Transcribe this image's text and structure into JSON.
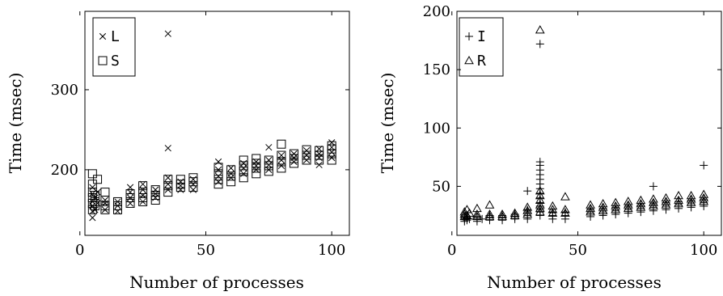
{
  "chart_data": [
    {
      "type": "scatter",
      "xlabel": "Number of processes",
      "ylabel": "Time (msec)",
      "xlim": [
        2,
        107
      ],
      "ylim": [
        118,
        398
      ],
      "xticks": [
        0,
        50,
        100
      ],
      "yticks": [
        200,
        300
      ],
      "legend_position": "top-left",
      "series": [
        {
          "name": "L",
          "marker": "cross",
          "points": [
            [
              5,
              140
            ],
            [
              5,
              148
            ],
            [
              5,
              155
            ],
            [
              5,
              160
            ],
            [
              5,
              170
            ],
            [
              5,
              178
            ],
            [
              6,
              150
            ],
            [
              6,
              165
            ],
            [
              7,
              158
            ],
            [
              7,
              172
            ],
            [
              10,
              150
            ],
            [
              10,
              158
            ],
            [
              10,
              162
            ],
            [
              15,
              148
            ],
            [
              15,
              155
            ],
            [
              15,
              160
            ],
            [
              20,
              158
            ],
            [
              20,
              165
            ],
            [
              20,
              172
            ],
            [
              20,
              178
            ],
            [
              25,
              160
            ],
            [
              25,
              168
            ],
            [
              25,
              175
            ],
            [
              25,
              182
            ],
            [
              30,
              165
            ],
            [
              30,
              170
            ],
            [
              30,
              175
            ],
            [
              35,
              175
            ],
            [
              35,
              182
            ],
            [
              35,
              190
            ],
            [
              35,
              227
            ],
            [
              35,
              370
            ],
            [
              40,
              175
            ],
            [
              40,
              180
            ],
            [
              40,
              185
            ],
            [
              45,
              175
            ],
            [
              45,
              182
            ],
            [
              45,
              188
            ],
            [
              55,
              185
            ],
            [
              55,
              192
            ],
            [
              55,
              200
            ],
            [
              55,
              210
            ],
            [
              60,
              190
            ],
            [
              60,
              195
            ],
            [
              60,
              202
            ],
            [
              65,
              195
            ],
            [
              65,
              202
            ],
            [
              65,
              208
            ],
            [
              70,
              200
            ],
            [
              70,
              205
            ],
            [
              70,
              210
            ],
            [
              75,
              200
            ],
            [
              75,
              206
            ],
            [
              75,
              212
            ],
            [
              75,
              228
            ],
            [
              80,
              205
            ],
            [
              80,
              212
            ],
            [
              80,
              218
            ],
            [
              85,
              210
            ],
            [
              85,
              215
            ],
            [
              85,
              220
            ],
            [
              90,
              212
            ],
            [
              90,
              218
            ],
            [
              90,
              224
            ],
            [
              95,
              206
            ],
            [
              95,
              215
            ],
            [
              95,
              220
            ],
            [
              95,
              226
            ],
            [
              100,
              215
            ],
            [
              100,
              222
            ],
            [
              100,
              228
            ],
            [
              100,
              234
            ]
          ]
        },
        {
          "name": "S",
          "marker": "square",
          "points": [
            [
              5,
              150
            ],
            [
              5,
              158
            ],
            [
              5,
              165
            ],
            [
              5,
              172
            ],
            [
              5,
              182
            ],
            [
              5,
              195
            ],
            [
              6,
              155
            ],
            [
              6,
              160
            ],
            [
              6,
              168
            ],
            [
              7,
              188
            ],
            [
              10,
              150
            ],
            [
              10,
              155
            ],
            [
              10,
              162
            ],
            [
              10,
              172
            ],
            [
              15,
              150
            ],
            [
              15,
              155
            ],
            [
              15,
              160
            ],
            [
              20,
              158
            ],
            [
              20,
              165
            ],
            [
              20,
              170
            ],
            [
              25,
              160
            ],
            [
              25,
              165
            ],
            [
              25,
              172
            ],
            [
              25,
              180
            ],
            [
              30,
              162
            ],
            [
              30,
              168
            ],
            [
              30,
              175
            ],
            [
              35,
              172
            ],
            [
              35,
              180
            ],
            [
              35,
              188
            ],
            [
              40,
              178
            ],
            [
              40,
              182
            ],
            [
              40,
              188
            ],
            [
              45,
              178
            ],
            [
              45,
              185
            ],
            [
              45,
              190
            ],
            [
              55,
              182
            ],
            [
              55,
              188
            ],
            [
              55,
              195
            ],
            [
              55,
              203
            ],
            [
              60,
              185
            ],
            [
              60,
              192
            ],
            [
              60,
              200
            ],
            [
              65,
              190
            ],
            [
              65,
              198
            ],
            [
              65,
              205
            ],
            [
              65,
              212
            ],
            [
              70,
              195
            ],
            [
              70,
              202
            ],
            [
              70,
              208
            ],
            [
              70,
              214
            ],
            [
              75,
              198
            ],
            [
              75,
              205
            ],
            [
              75,
              212
            ],
            [
              80,
              202
            ],
            [
              80,
              210
            ],
            [
              80,
              218
            ],
            [
              80,
              232
            ],
            [
              85,
              208
            ],
            [
              85,
              214
            ],
            [
              85,
              220
            ],
            [
              90,
              212
            ],
            [
              90,
              218
            ],
            [
              90,
              225
            ],
            [
              95,
              212
            ],
            [
              95,
              218
            ],
            [
              95,
              224
            ],
            [
              100,
              212
            ],
            [
              100,
              220
            ],
            [
              100,
              226
            ],
            [
              100,
              230
            ]
          ]
        }
      ]
    },
    {
      "type": "scatter",
      "xlabel": "Number of processes",
      "ylabel": "Time (msec)",
      "xlim": [
        2,
        107
      ],
      "ylim": [
        8,
        200
      ],
      "xticks": [
        0,
        50,
        100
      ],
      "yticks": [
        50,
        100,
        150,
        200
      ],
      "legend_position": "top-left",
      "series": [
        {
          "name": "I",
          "marker": "plus",
          "points": [
            [
              5,
              20
            ],
            [
              5,
              22
            ],
            [
              5,
              24
            ],
            [
              6,
              21
            ],
            [
              6,
              23
            ],
            [
              7,
              22
            ],
            [
              10,
              20
            ],
            [
              10,
              22
            ],
            [
              10,
              24
            ],
            [
              12,
              22
            ],
            [
              15,
              21
            ],
            [
              15,
              23
            ],
            [
              15,
              25
            ],
            [
              20,
              21
            ],
            [
              20,
              23
            ],
            [
              20,
              25
            ],
            [
              25,
              22
            ],
            [
              25,
              24
            ],
            [
              25,
              26
            ],
            [
              30,
              22
            ],
            [
              30,
              25
            ],
            [
              30,
              28
            ],
            [
              30,
              30
            ],
            [
              30,
              46
            ],
            [
              35,
              25
            ],
            [
              35,
              28
            ],
            [
              35,
              30
            ],
            [
              35,
              33
            ],
            [
              35,
              36
            ],
            [
              35,
              40
            ],
            [
              35,
              44
            ],
            [
              35,
              48
            ],
            [
              35,
              52
            ],
            [
              35,
              56
            ],
            [
              35,
              60
            ],
            [
              35,
              64
            ],
            [
              35,
              68
            ],
            [
              35,
              71
            ],
            [
              35,
              172
            ],
            [
              40,
              22
            ],
            [
              40,
              25
            ],
            [
              40,
              28
            ],
            [
              45,
              22
            ],
            [
              45,
              25
            ],
            [
              45,
              28
            ],
            [
              55,
              24
            ],
            [
              55,
              27
            ],
            [
              55,
              30
            ],
            [
              60,
              25
            ],
            [
              60,
              28
            ],
            [
              60,
              31
            ],
            [
              65,
              26
            ],
            [
              65,
              29
            ],
            [
              65,
              32
            ],
            [
              70,
              27
            ],
            [
              70,
              30
            ],
            [
              70,
              33
            ],
            [
              75,
              28
            ],
            [
              75,
              31
            ],
            [
              75,
              34
            ],
            [
              80,
              29
            ],
            [
              80,
              32
            ],
            [
              80,
              35
            ],
            [
              80,
              50
            ],
            [
              85,
              30
            ],
            [
              85,
              33
            ],
            [
              85,
              36
            ],
            [
              90,
              31
            ],
            [
              90,
              34
            ],
            [
              90,
              37
            ],
            [
              95,
              32
            ],
            [
              95,
              35
            ],
            [
              95,
              38
            ],
            [
              100,
              33
            ],
            [
              100,
              36
            ],
            [
              100,
              39
            ],
            [
              100,
              68
            ]
          ]
        },
        {
          "name": "R",
          "marker": "triangle",
          "points": [
            [
              5,
              24
            ],
            [
              5,
              26
            ],
            [
              5,
              28
            ],
            [
              6,
              25
            ],
            [
              6,
              30
            ],
            [
              7,
              27
            ],
            [
              10,
              24
            ],
            [
              10,
              26
            ],
            [
              10,
              31
            ],
            [
              15,
              24
            ],
            [
              15,
              26
            ],
            [
              15,
              34
            ],
            [
              20,
              24
            ],
            [
              20,
              26
            ],
            [
              25,
              25
            ],
            [
              25,
              27
            ],
            [
              30,
              26
            ],
            [
              30,
              29
            ],
            [
              30,
              32
            ],
            [
              35,
              28
            ],
            [
              35,
              31
            ],
            [
              35,
              34
            ],
            [
              35,
              38
            ],
            [
              35,
              42
            ],
            [
              35,
              46
            ],
            [
              35,
              184
            ],
            [
              40,
              27
            ],
            [
              40,
              30
            ],
            [
              40,
              33
            ],
            [
              45,
              27
            ],
            [
              45,
              30
            ],
            [
              45,
              41
            ],
            [
              55,
              28
            ],
            [
              55,
              31
            ],
            [
              55,
              34
            ],
            [
              60,
              29
            ],
            [
              60,
              32
            ],
            [
              60,
              35
            ],
            [
              65,
              30
            ],
            [
              65,
              33
            ],
            [
              65,
              36
            ],
            [
              70,
              31
            ],
            [
              70,
              34
            ],
            [
              70,
              37
            ],
            [
              75,
              32
            ],
            [
              75,
              35
            ],
            [
              75,
              38
            ],
            [
              80,
              33
            ],
            [
              80,
              36
            ],
            [
              80,
              39
            ],
            [
              85,
              34
            ],
            [
              85,
              37
            ],
            [
              85,
              40
            ],
            [
              90,
              35
            ],
            [
              90,
              38
            ],
            [
              90,
              42
            ],
            [
              95,
              36
            ],
            [
              95,
              39
            ],
            [
              95,
              42
            ],
            [
              100,
              37
            ],
            [
              100,
              40
            ],
            [
              100,
              43
            ]
          ]
        }
      ]
    }
  ]
}
